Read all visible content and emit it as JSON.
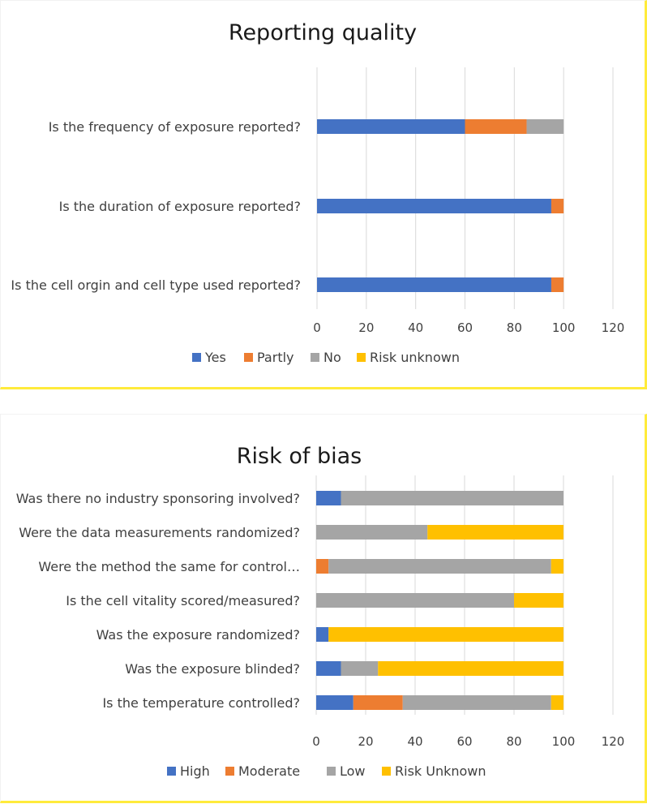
{
  "chart_data": [
    {
      "type": "bar",
      "orientation": "horizontal",
      "stacked": true,
      "title": "Reporting quality",
      "categories": [
        "Is the frequency of exposure reported?",
        "Is the duration of exposure reported?",
        "Is the cell orgin and cell type used reported?"
      ],
      "series": [
        {
          "name": "Yes",
          "color": "#4472c4",
          "values": [
            60,
            95,
            95
          ]
        },
        {
          "name": "Partly",
          "color": "#ed7d31",
          "values": [
            25,
            5,
            5
          ]
        },
        {
          "name": "No",
          "color": "#a5a5a5",
          "values": [
            15,
            0,
            0
          ]
        },
        {
          "name": "Risk unknown",
          "color": "#ffc000",
          "values": [
            0,
            0,
            0
          ]
        }
      ],
      "xlim": [
        0,
        120
      ],
      "xticks": [
        "0",
        "20",
        "40",
        "60",
        "80",
        "100",
        "120"
      ],
      "grid": true,
      "legend": "bottom"
    },
    {
      "type": "bar",
      "orientation": "horizontal",
      "stacked": true,
      "title": "Risk of bias",
      "categories": [
        "Was there no industry sponsoring involved?",
        "Were the data measurements randomized?",
        "Were the method the same for control…",
        "Is the cell vitality scored/measured?",
        "Was the exposure randomized?",
        "Was the exposure blinded?",
        "Is the temperature controlled?"
      ],
      "series": [
        {
          "name": "High",
          "color": "#4472c4",
          "values": [
            10,
            0,
            0,
            0,
            5,
            10,
            15
          ]
        },
        {
          "name": "Moderate",
          "color": "#ed7d31",
          "values": [
            0,
            0,
            5,
            0,
            0,
            0,
            20
          ]
        },
        {
          "name": "Low",
          "color": "#a5a5a5",
          "values": [
            90,
            45,
            90,
            80,
            0,
            15,
            60
          ]
        },
        {
          "name": "Risk Unknown",
          "color": "#ffc000",
          "values": [
            0,
            55,
            5,
            20,
            95,
            75,
            5
          ]
        }
      ],
      "xlim": [
        0,
        120
      ],
      "xticks": [
        "0",
        "20",
        "40",
        "60",
        "80",
        "100",
        "120"
      ],
      "grid": true,
      "legend": "bottom"
    }
  ]
}
